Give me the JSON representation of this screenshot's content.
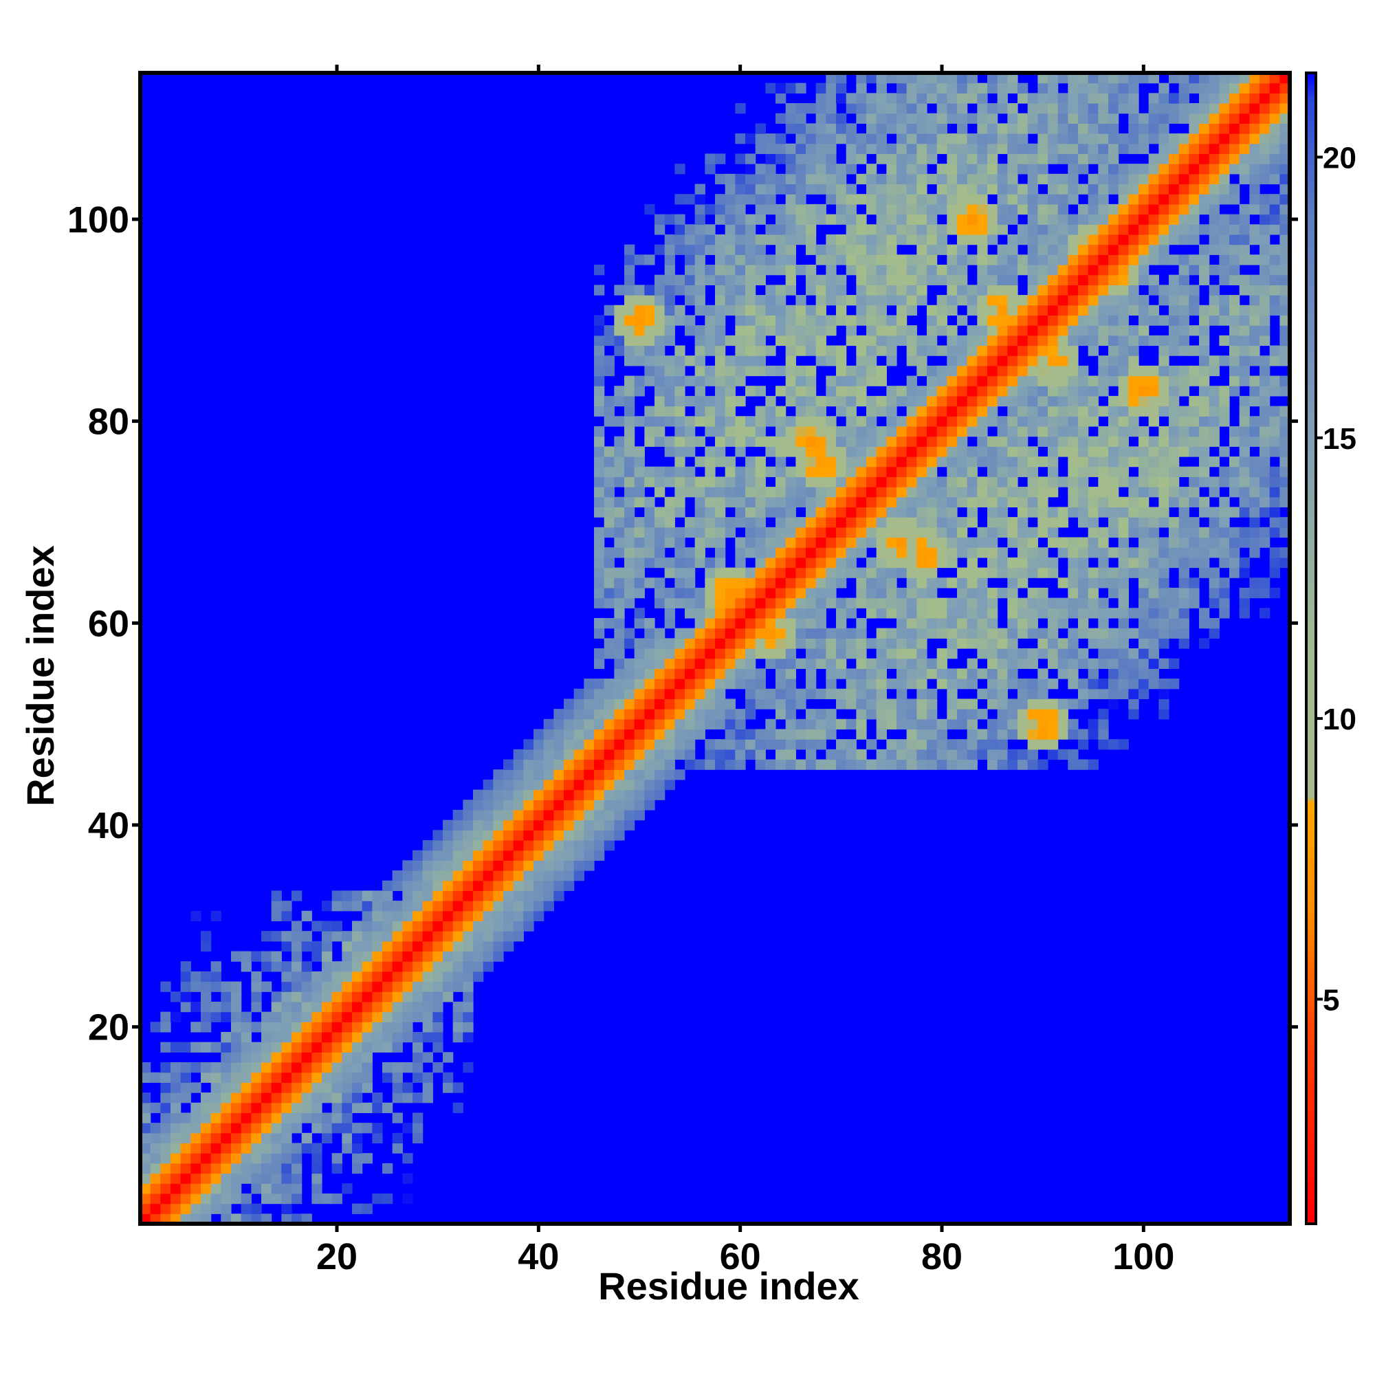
{
  "chart_data": {
    "type": "heatmap",
    "title": "",
    "xlabel": "Residue index",
    "ylabel": "Residue index",
    "x_range": [
      1,
      114
    ],
    "y_range": [
      1,
      114
    ],
    "x_ticks": [
      20,
      40,
      60,
      80,
      100
    ],
    "y_ticks": [
      20,
      40,
      60,
      80,
      100
    ],
    "colorbar": {
      "range": [
        1,
        21.5
      ],
      "ticks": [
        5,
        10,
        15,
        20
      ],
      "stops": [
        {
          "value": 1,
          "color": "#ff0000"
        },
        {
          "value": 4.5,
          "color": "#ff4500"
        },
        {
          "value": 6.5,
          "color": "#ff8c00"
        },
        {
          "value": 8.5,
          "color": "#ffa500"
        },
        {
          "value": 8.6,
          "color": "#a6ba8c"
        },
        {
          "value": 11,
          "color": "#a3bd8c"
        },
        {
          "value": 15,
          "color": "#7f9fb6"
        },
        {
          "value": 19,
          "color": "#5b7cc2"
        },
        {
          "value": 21,
          "color": "#2a47d8"
        },
        {
          "value": 21.5,
          "color": "#0000ff"
        }
      ]
    },
    "grid": false,
    "legend": "colorbar-right",
    "value_description": "symmetric residue–residue distance map; diagonal ~1, contacts within domains ~6–16, background >=21.5",
    "domains": [
      {
        "start": 1,
        "end": 33
      },
      {
        "start": 46,
        "end": 114
      }
    ],
    "contact_patches": [
      {
        "x": 67,
        "y": 78,
        "value": 7
      },
      {
        "x": 78,
        "y": 67,
        "value": 7
      },
      {
        "x": 63,
        "y": 59,
        "value": 7
      },
      {
        "x": 59,
        "y": 63,
        "value": 7
      },
      {
        "x": 86,
        "y": 91,
        "value": 7
      },
      {
        "x": 91,
        "y": 86,
        "value": 7
      },
      {
        "x": 100,
        "y": 83,
        "value": 7
      },
      {
        "x": 83,
        "y": 100,
        "value": 7
      },
      {
        "x": 90,
        "y": 50,
        "value": 7
      },
      {
        "x": 50,
        "y": 90,
        "value": 7
      },
      {
        "x": 76,
        "y": 68,
        "value": 7
      },
      {
        "x": 68,
        "y": 76,
        "value": 7
      },
      {
        "x": 95,
        "y": 97,
        "value": 7
      },
      {
        "x": 97,
        "y": 95,
        "value": 7
      }
    ]
  }
}
